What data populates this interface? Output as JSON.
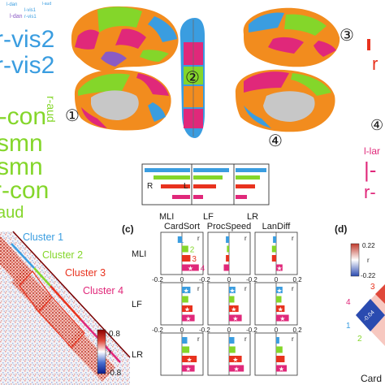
{
  "colors": {
    "blue": "#3a9de0",
    "green": "#84d62a",
    "red": "#e8321e",
    "magenta": "#e0287a",
    "orange": "#f28c1e",
    "purple": "#8b5bc4",
    "gray": "#c7c7c7"
  },
  "wordcloud": {
    "small_words": [
      "l-dan",
      "l-vis1",
      "r-vis1",
      "l-dan",
      "l-aud"
    ],
    "big_words": [
      "r-vis2",
      "r-vis2",
      "l-con",
      "r-aud",
      "smn",
      "smn",
      "r-con",
      "aud"
    ]
  },
  "brain_markers": [
    "①",
    "②",
    "③",
    "④"
  ],
  "right_text": {
    "line_red": "r",
    "marker_4": "④",
    "line_lar": "l-lar",
    "line_l": "|-",
    "line_r": "r-"
  },
  "inset_legend": {
    "label_r": "R",
    "label_l": "L",
    "x_labels": [
      "MLI",
      "LF",
      "LR"
    ]
  },
  "panel_c": {
    "tag": "(c)",
    "columns": [
      "CardSort",
      "ProcSpeed",
      "LanDiff"
    ],
    "rows": [
      "MLI",
      "LF",
      "LR"
    ],
    "r_label": "r",
    "cluster_numbers": [
      "1",
      "2",
      "3",
      "4"
    ],
    "star": "★",
    "tick_neg": "-0.2",
    "tick_zero": "0",
    "tick_pos": "0.2",
    "cells": [
      [
        [
          -0.04,
          0.06,
          0.08,
          0.16
        ],
        [
          -0.03,
          -0.02,
          -0.03,
          -0.05
        ],
        [
          -0.03,
          -0.04,
          -0.04,
          0.06
        ]
      ],
      [
        [
          0.08,
          0.06,
          0.1,
          0.12
        ],
        [
          0.06,
          0.05,
          0.09,
          0.12
        ],
        [
          0.06,
          0.05,
          0.08,
          0.12
        ]
      ],
      [
        [
          0.05,
          0.07,
          0.14,
          0.12
        ],
        [
          0.05,
          0.06,
          0.12,
          0.14
        ],
        [
          0.03,
          0.06,
          0.08,
          0.1
        ]
      ]
    ],
    "stars": [
      [
        [
          false,
          false,
          false,
          true
        ],
        [
          false,
          false,
          false,
          false
        ],
        [
          false,
          false,
          false,
          true
        ]
      ],
      [
        [
          true,
          false,
          true,
          true
        ],
        [
          true,
          false,
          true,
          true
        ],
        [
          true,
          false,
          true,
          true
        ]
      ],
      [
        [
          false,
          false,
          true,
          true
        ],
        [
          false,
          false,
          true,
          true
        ],
        [
          false,
          false,
          false,
          true
        ]
      ]
    ]
  },
  "panel_d": {
    "tag": "(d)",
    "scale_top": "0.22",
    "scale_mid": "r",
    "scale_bottom": "-0.22",
    "tri_labels": [
      "3",
      "4",
      "1",
      "2"
    ],
    "cell_value": "-0.04",
    "footer": "Card"
  },
  "clusters": {
    "labels": [
      "Cluster 1",
      "Cluster 2",
      "Cluster 3",
      "Cluster 4"
    ],
    "colorbar_top": "0.8",
    "colorbar_mid": "r",
    "colorbar_bottom": "-0.8"
  }
}
